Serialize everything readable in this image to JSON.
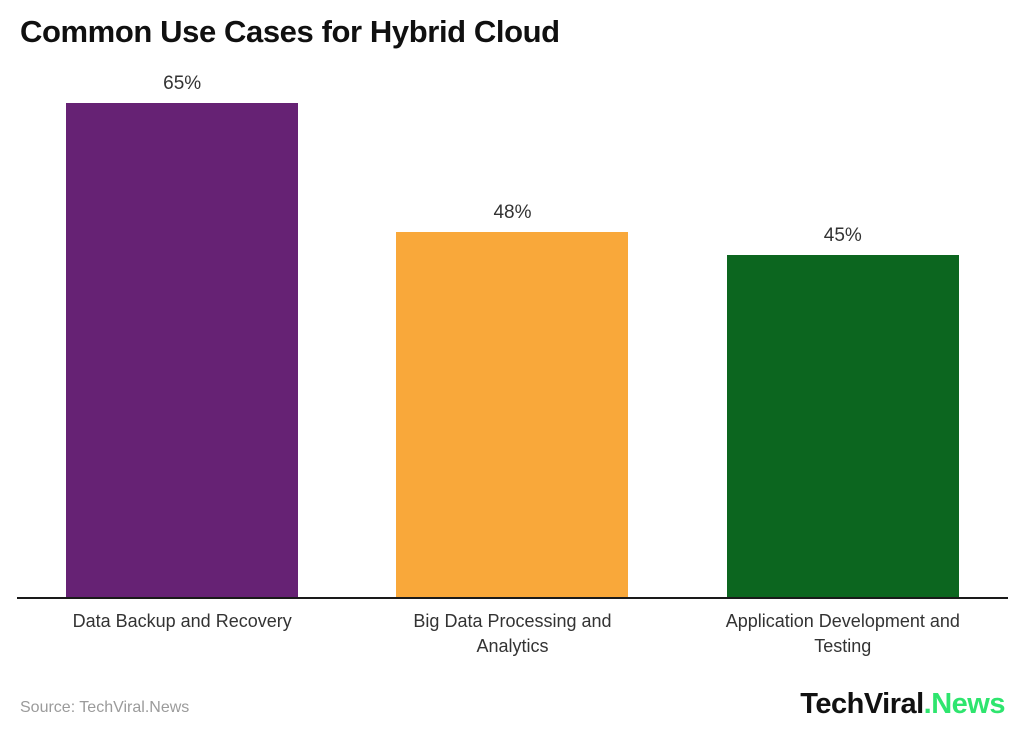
{
  "chart_data": {
    "type": "bar",
    "title": "Common Use Cases for Hybrid Cloud",
    "categories": [
      "Data Backup and Recovery",
      "Big Data Processing and Analytics",
      "Application Development and Testing"
    ],
    "values": [
      65,
      48,
      45
    ],
    "value_labels": [
      "65%",
      "48%",
      "45%"
    ],
    "bar_colors": [
      "#662274",
      "#F9A83A",
      "#0C661F"
    ],
    "xlabel": "",
    "ylabel": "",
    "ylim": [
      0,
      65
    ],
    "grid": "off",
    "legend": "none"
  },
  "footer": {
    "source": "Source: TechViral.News",
    "brand_black": "TechViral",
    "brand_green": ".News"
  },
  "colors": {
    "background": "#ffffff",
    "title": "#101010",
    "value_label": "#333333",
    "category_label": "#333333",
    "axis": "#1a1a1a",
    "source_text": "#9b9b9b",
    "brand_black": "#111111",
    "brand_green": "#2EE56E"
  }
}
